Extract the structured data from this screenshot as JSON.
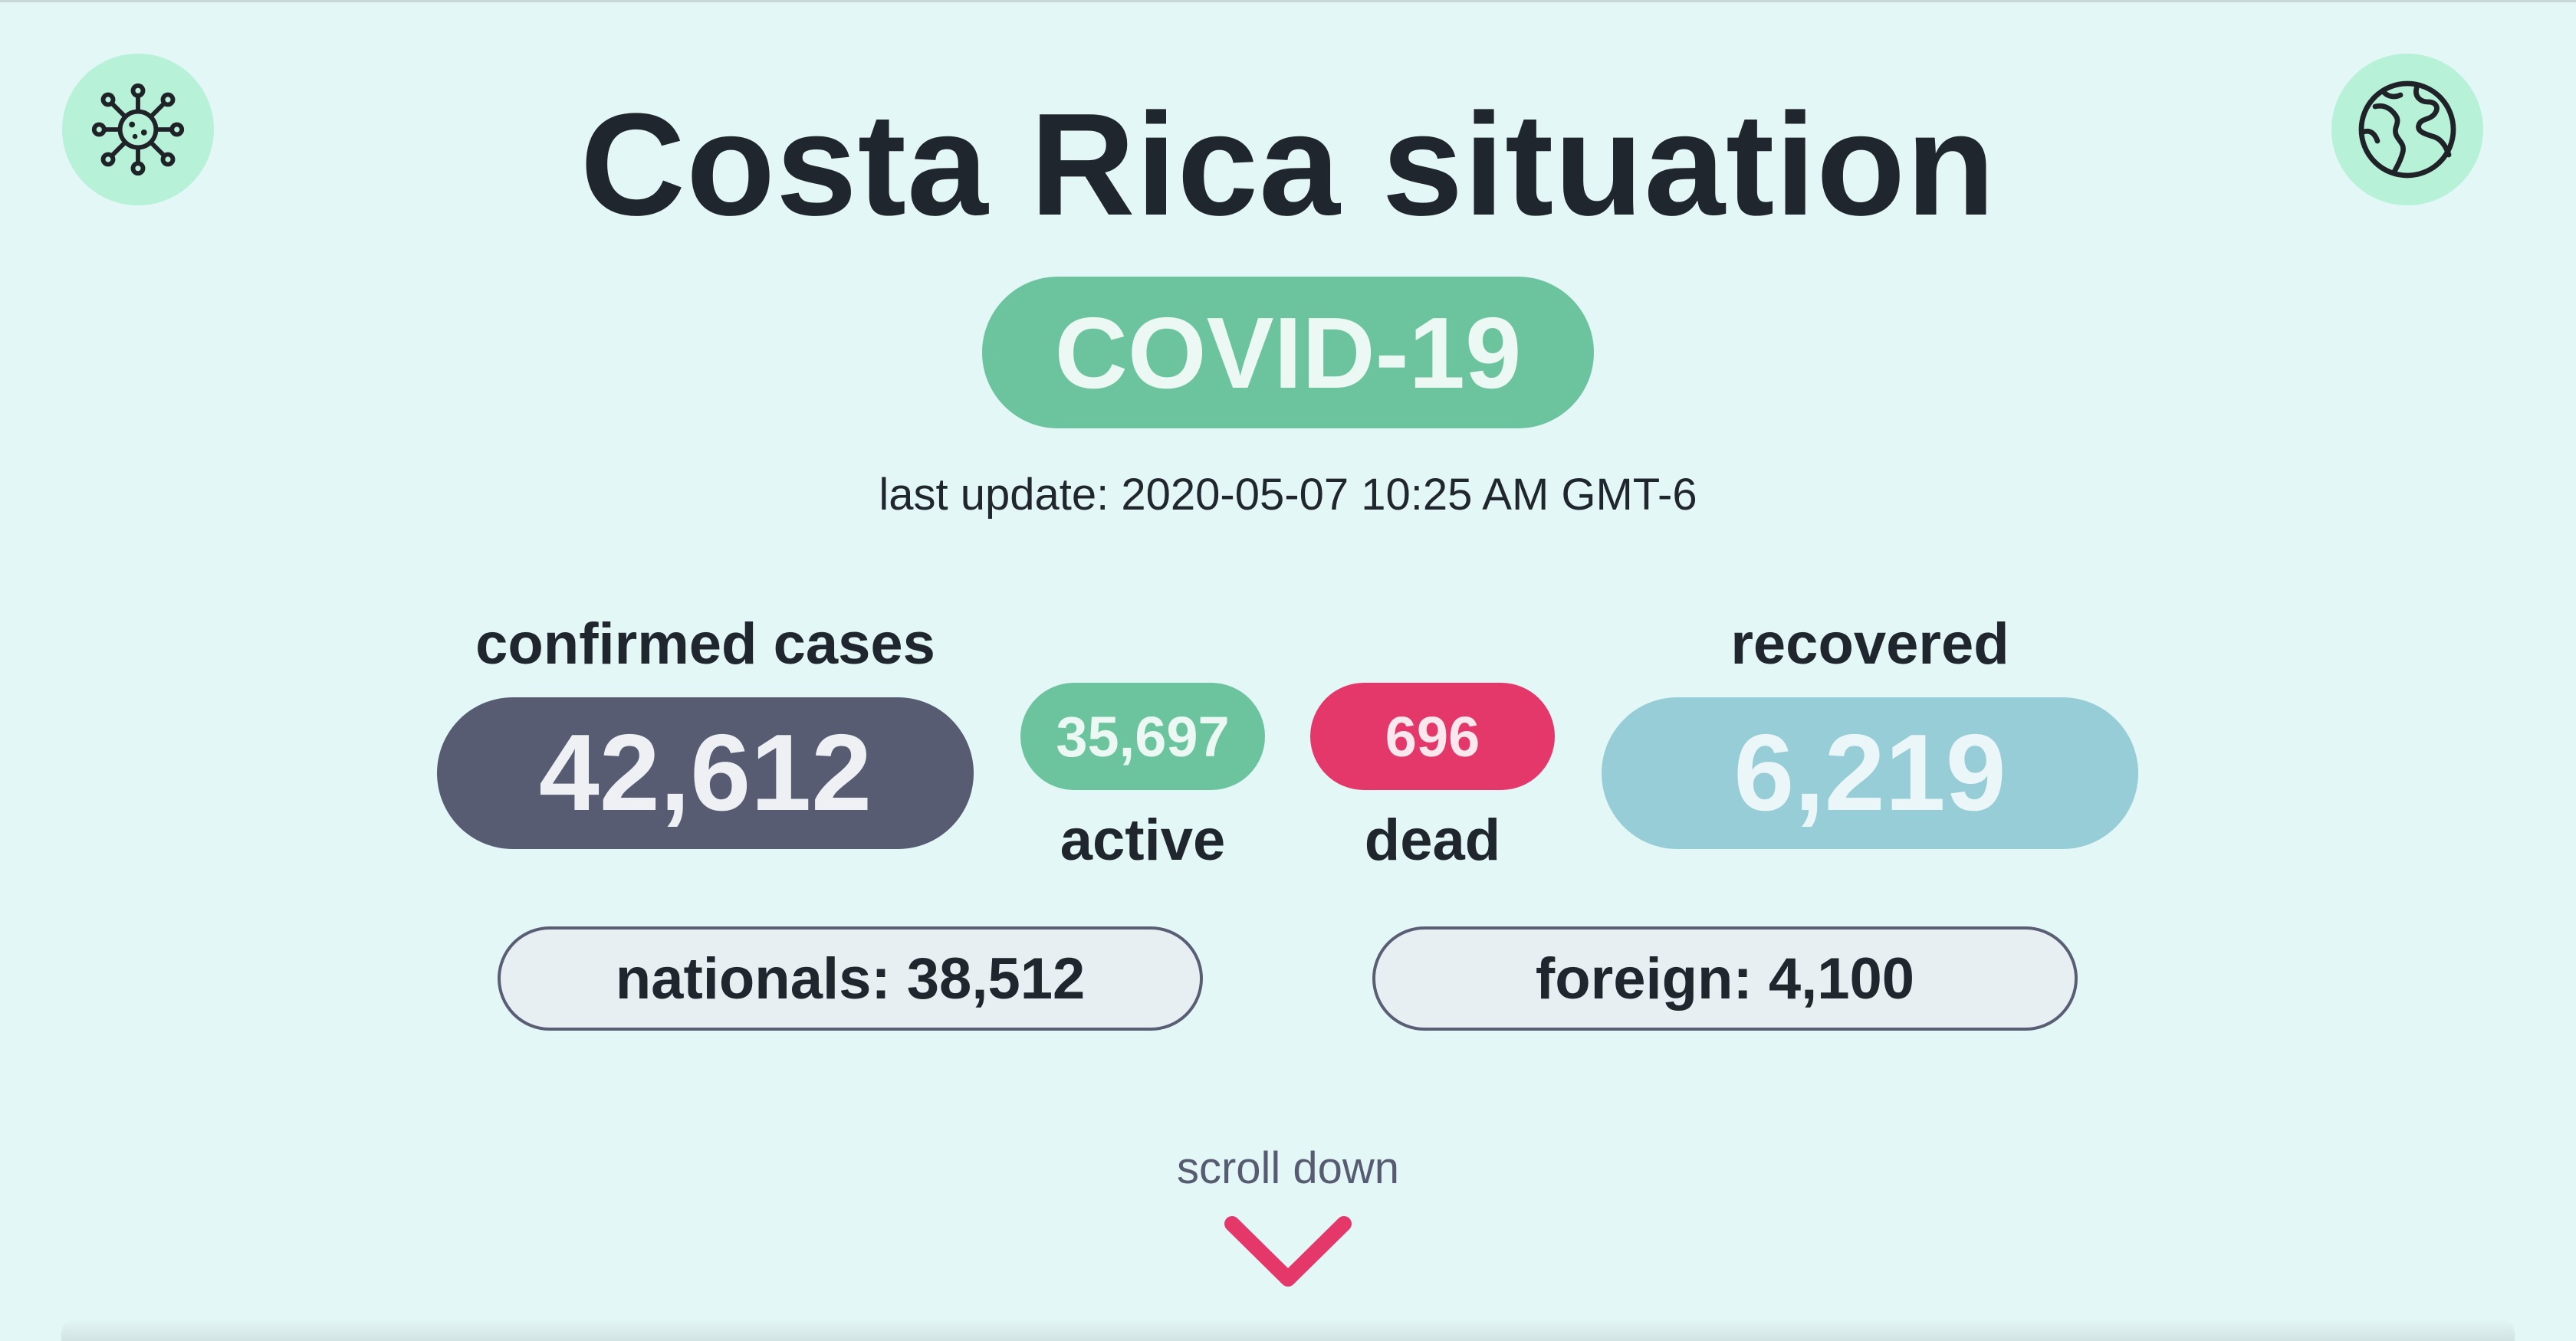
{
  "header": {
    "title": "Costa Rica situation",
    "badge": "COVID-19",
    "last_update_label": "last update:",
    "last_update_value": "2020-05-07 10:25 AM GMT-6"
  },
  "icons": {
    "left": "virus-icon",
    "right": "globe-icon"
  },
  "stats": {
    "confirmed": {
      "label": "confirmed cases",
      "value": "42,612"
    },
    "active": {
      "label": "active",
      "value": "35,697"
    },
    "dead": {
      "label": "dead",
      "value": "696"
    },
    "recovered": {
      "label": "recovered",
      "value": "6,219"
    }
  },
  "breakdown": {
    "nationals": "nationals: 38,512",
    "foreign": "foreign: 4,100"
  },
  "scroll": {
    "label": "scroll down"
  },
  "colors": {
    "background": "#e3f7f6",
    "accent_green": "#6cc49f",
    "confirmed": "#585c73",
    "dead": "#e4386a",
    "recovered": "#96cdd7",
    "icon_circle": "#b6f1d8"
  }
}
